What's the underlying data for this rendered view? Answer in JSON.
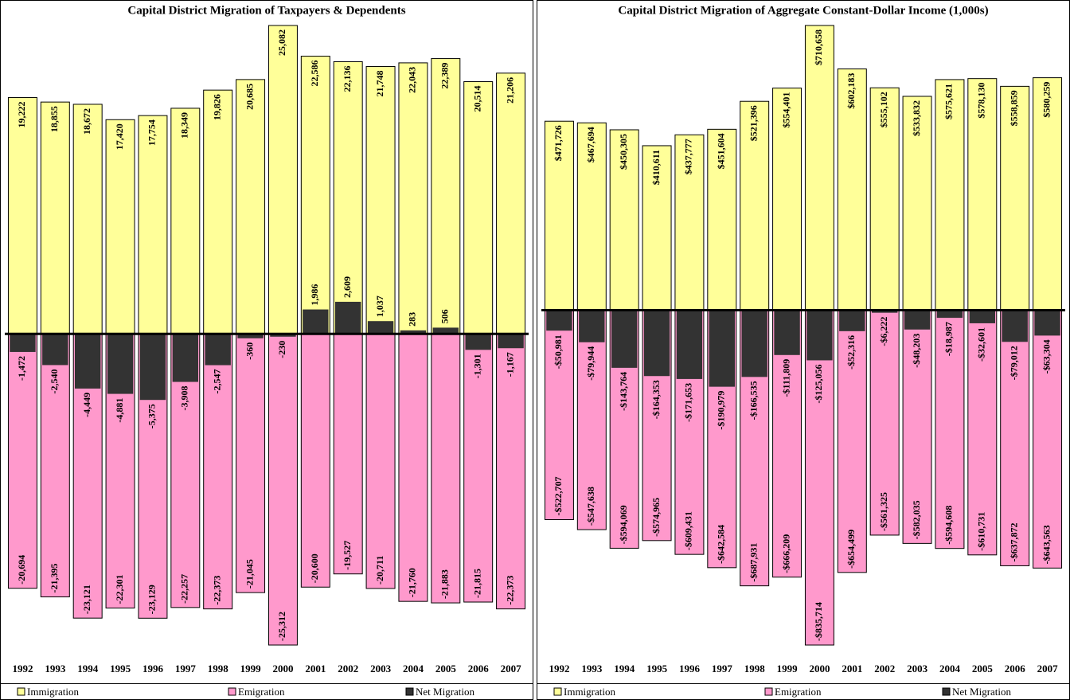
{
  "chart_data": [
    {
      "type": "bar",
      "title": "Capital District Migration of Taxpayers & Dependents",
      "categories": [
        "1992",
        "1993",
        "1994",
        "1995",
        "1996",
        "1997",
        "1998",
        "1999",
        "2000",
        "2001",
        "2002",
        "2003",
        "2004",
        "2005",
        "2006",
        "2007"
      ],
      "series": [
        {
          "name": "Immigration",
          "color": "#ffff99",
          "values": [
            19222,
            18855,
            18672,
            17420,
            17754,
            18349,
            19826,
            20685,
            25082,
            22586,
            22136,
            21748,
            22043,
            22389,
            20514,
            21206
          ],
          "value_labels": [
            "19,222",
            "18,855",
            "18,672",
            "17,420",
            "17,754",
            "18,349",
            "19,826",
            "20,685",
            "25,082",
            "22,586",
            "22,136",
            "21,748",
            "22,043",
            "22,389",
            "20,514",
            "21,206"
          ]
        },
        {
          "name": "Emigration",
          "color": "#ff99cc",
          "values": [
            -20694,
            -21395,
            -23121,
            -22301,
            -23129,
            -22257,
            -22373,
            -21045,
            -25312,
            -20600,
            -19527,
            -20711,
            -21760,
            -21883,
            -21815,
            -22373
          ],
          "value_labels": [
            "-20,694",
            "-21,395",
            "-23,121",
            "-22,301",
            "-23,129",
            "-22,257",
            "-22,373",
            "-21,045",
            "-25,312",
            "-20,600",
            "-19,527",
            "-20,711",
            "-21,760",
            "-21,883",
            "-21,815",
            "-22,373"
          ]
        },
        {
          "name": "Net Migration",
          "color": "#333333",
          "values": [
            -1472,
            -2540,
            -4449,
            -4881,
            -5375,
            -3908,
            -2547,
            -360,
            -230,
            1986,
            2609,
            1037,
            283,
            506,
            -1301,
            -1167
          ],
          "value_labels": [
            "-1,472",
            "-2,540",
            "-4,449",
            "-4,881",
            "-5,375",
            "-3,908",
            "-2,547",
            "-360",
            "-230",
            "1,986",
            "2,609",
            "1,037",
            "283",
            "506",
            "-1,301",
            "-1,167"
          ]
        }
      ]
    },
    {
      "type": "bar",
      "title": "Capital District Migration of Aggregate Constant-Dollar Income (1,000s)",
      "categories": [
        "1992",
        "1993",
        "1994",
        "1995",
        "1996",
        "1997",
        "1998",
        "1999",
        "2000",
        "2001",
        "2002",
        "2003",
        "2004",
        "2005",
        "2006",
        "2007"
      ],
      "series": [
        {
          "name": "Immigration",
          "color": "#ffff99",
          "values": [
            471726,
            467694,
            450305,
            410611,
            437777,
            451604,
            521396,
            554401,
            710658,
            602183,
            555102,
            533832,
            575621,
            578130,
            558859,
            580259
          ],
          "value_labels": [
            "$471,726",
            "$467,694",
            "$450,305",
            "$410,611",
            "$437,777",
            "$451,604",
            "$521,396",
            "$554,401",
            "$710,658",
            "$602,183",
            "$555,102",
            "$533,832",
            "$575,621",
            "$578,130",
            "$558,859",
            "$580,259"
          ]
        },
        {
          "name": "Emigration",
          "color": "#ff99cc",
          "values": [
            -522707,
            -547638,
            -594069,
            -574965,
            -609431,
            -642584,
            -687931,
            -666209,
            -835714,
            -654499,
            -561325,
            -582035,
            -594608,
            -610731,
            -637872,
            -643563
          ],
          "value_labels": [
            "-$522,707",
            "-$547,638",
            "-$594,069",
            "-$574,965",
            "-$609,431",
            "-$642,584",
            "-$687,931",
            "-$666,209",
            "-$835,714",
            "-$654,499",
            "-$561,325",
            "-$582,035",
            "-$594,608",
            "-$610,731",
            "-$637,872",
            "-$643,563"
          ]
        },
        {
          "name": "Net Migration",
          "color": "#333333",
          "values": [
            -50981,
            -79944,
            -143764,
            -164353,
            -171653,
            -190979,
            -166535,
            -111809,
            -125056,
            -52316,
            -6222,
            -48203,
            -18987,
            -32601,
            -79012,
            -63304
          ],
          "value_labels": [
            "-$50,981",
            "-$79,944",
            "-$143,764",
            "-$164,353",
            "-$171,653",
            "-$190,979",
            "-$166,535",
            "-$111,809",
            "-$125,056",
            "-$52,316",
            "-$6,222",
            "-$48,203",
            "-$18,987",
            "-$32,601",
            "-$79,012",
            "-$63,304"
          ]
        }
      ]
    }
  ]
}
